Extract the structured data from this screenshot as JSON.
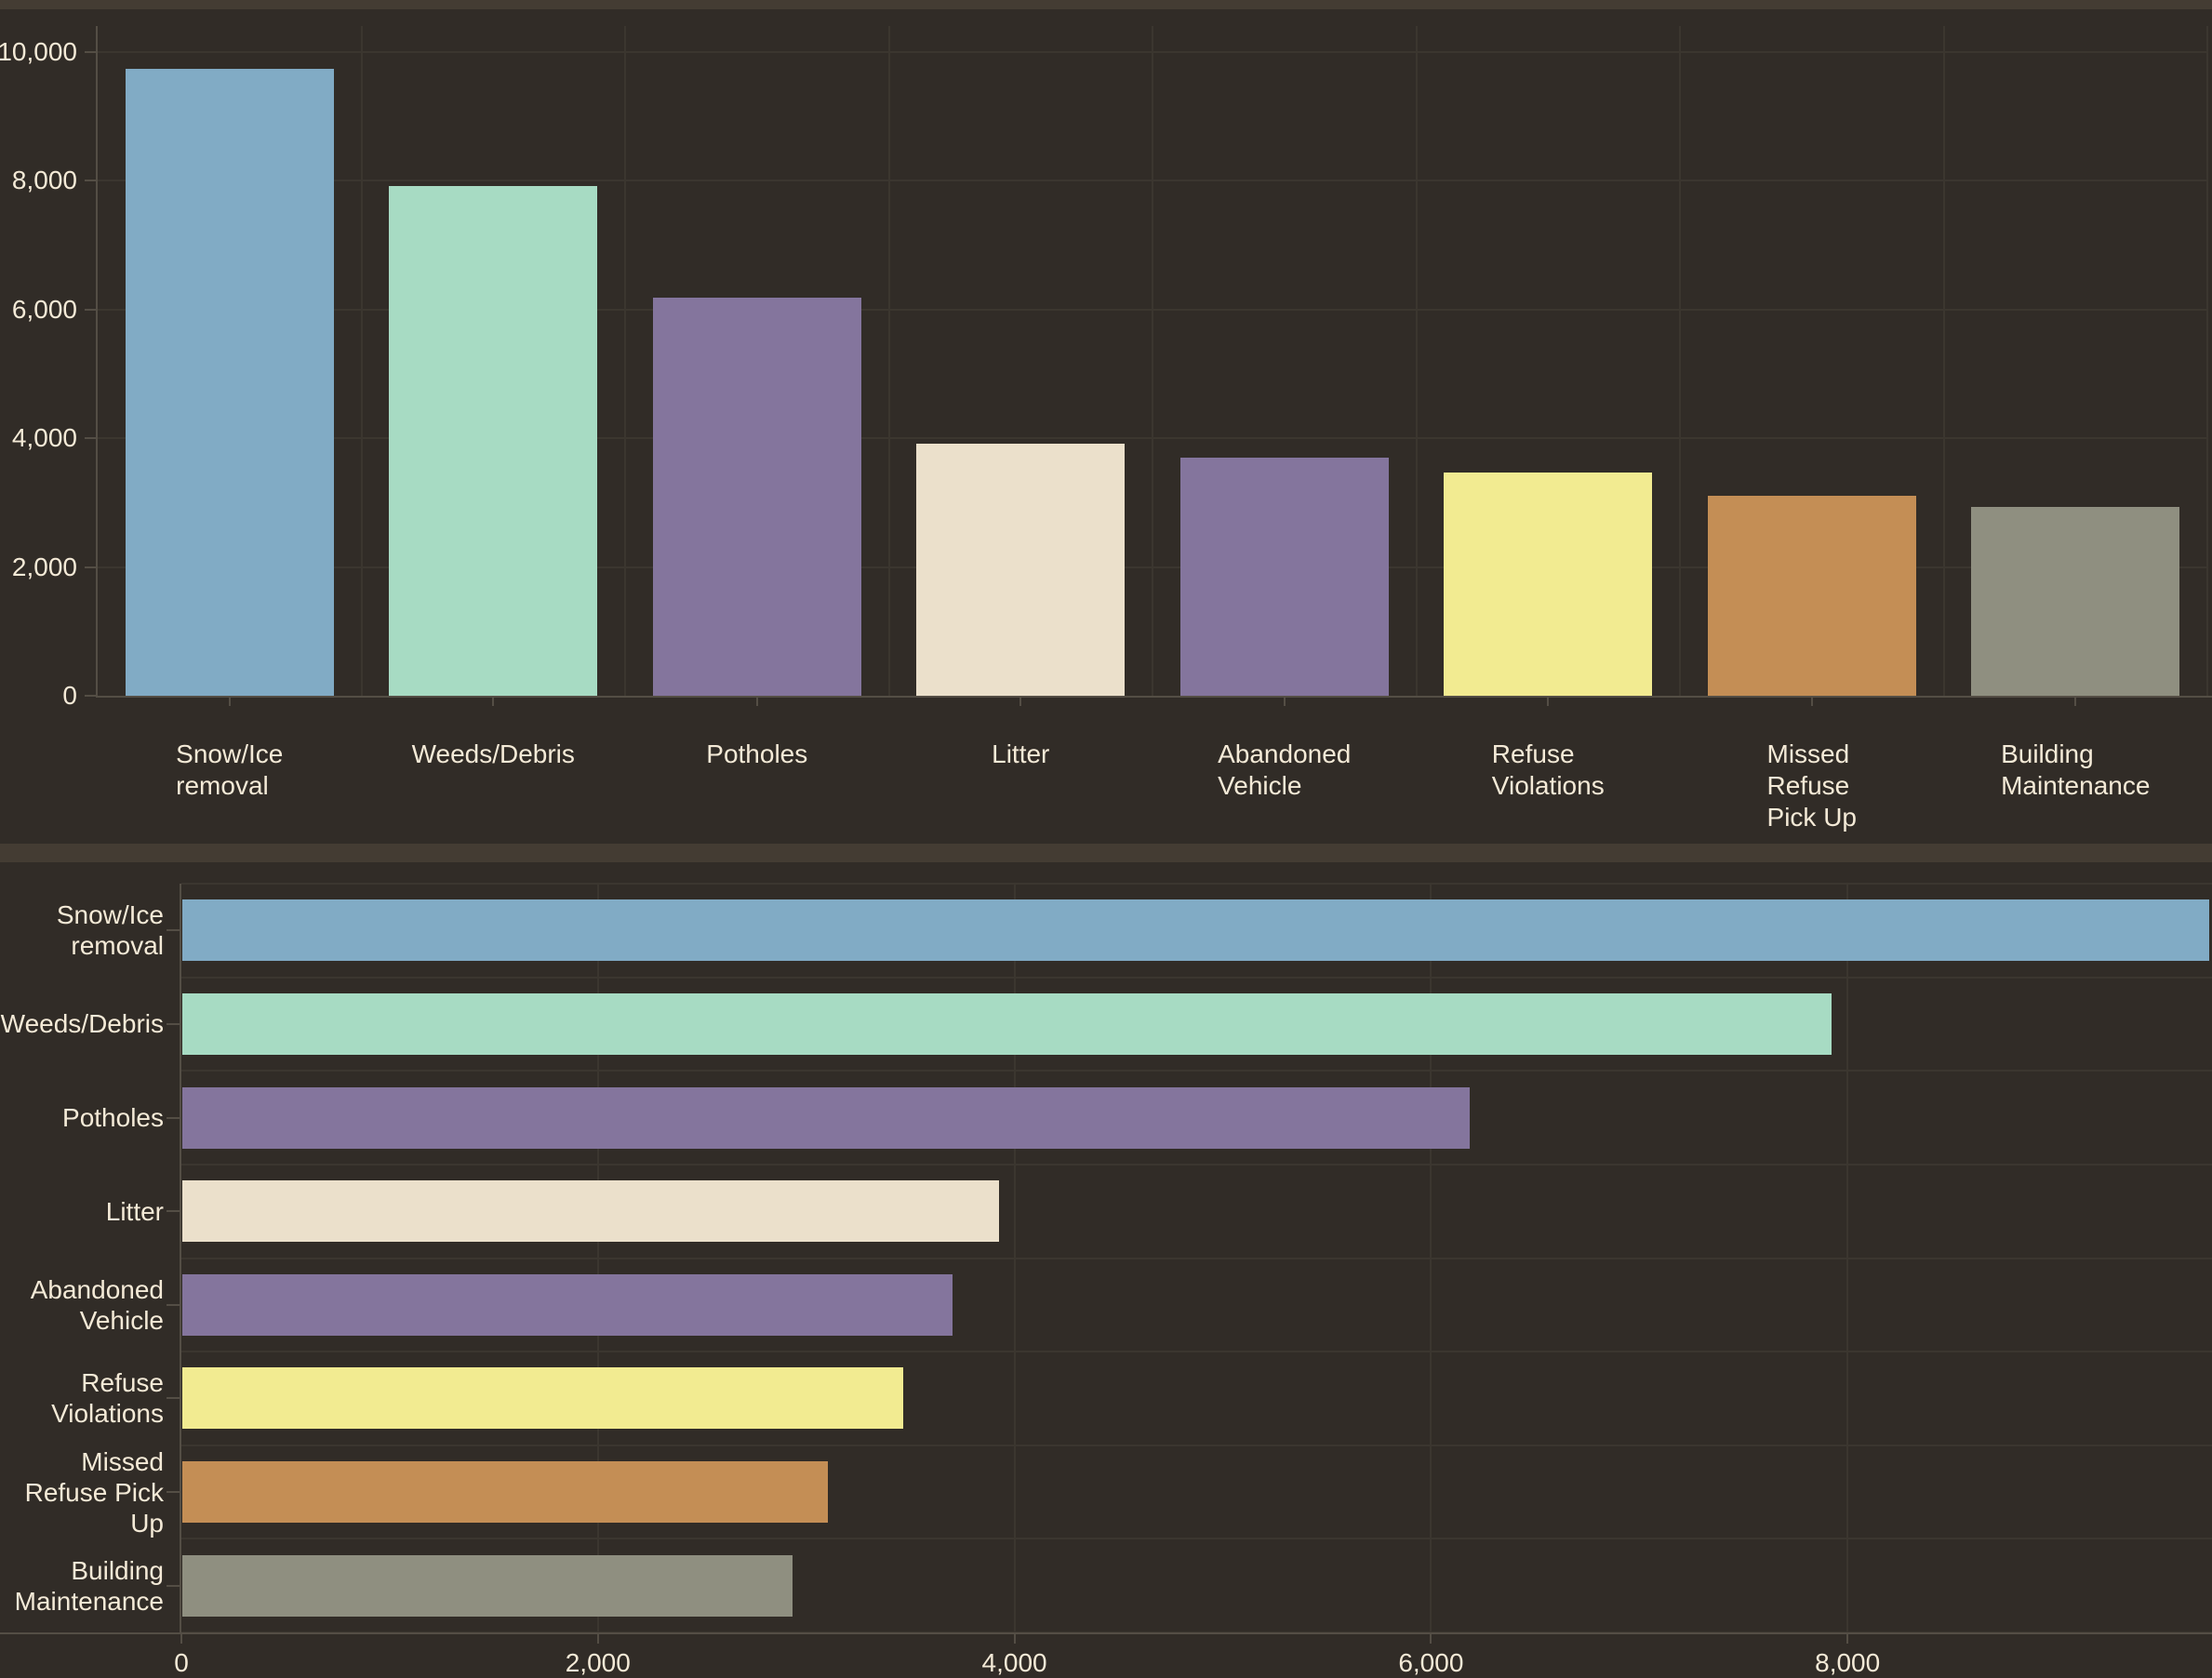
{
  "page": {
    "background_color": "#443c33",
    "panel_color": "#312c27",
    "gridline_color": "#3b362f",
    "axis_color": "#544e45",
    "text_color": "#f4ead7"
  },
  "chart_data": [
    {
      "type": "bar",
      "orientation": "vertical",
      "title": "",
      "xlabel": "",
      "ylabel": "",
      "categories": [
        "Snow/Ice removal",
        "Weeds/Debris",
        "Potholes",
        "Litter",
        "Abandoned Vehicle",
        "Refuse Violations",
        "Missed Refuse Pick Up",
        "Building Maintenance"
      ],
      "category_label_lines": [
        [
          "Snow/Ice",
          "removal"
        ],
        [
          "Weeds/Debris"
        ],
        [
          "Potholes"
        ],
        [
          "Litter"
        ],
        [
          "Abandoned",
          "Vehicle"
        ],
        [
          "Refuse",
          "Violations"
        ],
        [
          "Missed",
          "Refuse",
          "Pick Up"
        ],
        [
          "Building",
          "Maintenance"
        ]
      ],
      "values": [
        9730,
        7920,
        6180,
        3920,
        3700,
        3460,
        3100,
        2930
      ],
      "colors": [
        "#81abc5",
        "#a7dbc3",
        "#84759d",
        "#ebe0cb",
        "#84759d",
        "#f2eb91",
        "#c48e55",
        "#8f8f80"
      ],
      "y_ticks": [
        "0",
        "2,000",
        "4,000",
        "6,000",
        "8,000",
        "10,000"
      ],
      "y_tick_values": [
        0,
        2000,
        4000,
        6000,
        8000,
        10000
      ],
      "ylim": [
        0,
        10400
      ],
      "grid": true,
      "legend": "none"
    },
    {
      "type": "bar",
      "orientation": "horizontal",
      "title": "",
      "xlabel": "",
      "ylabel": "",
      "categories": [
        "Snow/Ice removal",
        "Weeds/Debris",
        "Potholes",
        "Litter",
        "Abandoned Vehicle",
        "Refuse Violations",
        "Missed Refuse Pick Up",
        "Building Maintenance"
      ],
      "category_label_lines": [
        [
          "Snow/Ice",
          "removal"
        ],
        [
          "Weeds/Debris"
        ],
        [
          "Potholes"
        ],
        [
          "Litter"
        ],
        [
          "Abandoned",
          "Vehicle"
        ],
        [
          "Refuse",
          "Violations"
        ],
        [
          "Missed",
          "Refuse Pick",
          "Up"
        ],
        [
          "Building",
          "Maintenance"
        ]
      ],
      "values": [
        9730,
        7920,
        6180,
        3920,
        3700,
        3460,
        3100,
        2930
      ],
      "colors": [
        "#81abc5",
        "#a7dbc3",
        "#84759d",
        "#ebe0cb",
        "#84759d",
        "#f2eb91",
        "#c48e55",
        "#8f8f80"
      ],
      "x_ticks": [
        "0",
        "2,000",
        "4,000",
        "6,000",
        "8,000"
      ],
      "x_tick_values": [
        0,
        2000,
        4000,
        6000,
        8000
      ],
      "xlim": [
        0,
        9750
      ],
      "grid": true,
      "legend": "none"
    }
  ]
}
